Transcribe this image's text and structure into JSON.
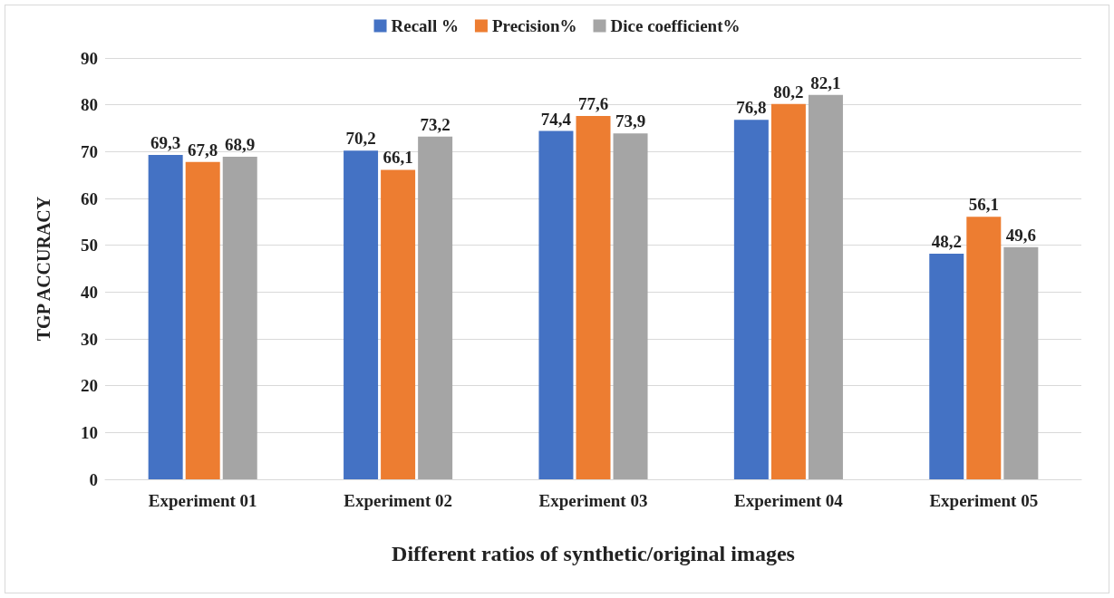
{
  "chart_data": {
    "type": "bar",
    "xlabel": "Different ratios of synthetic/original images",
    "ylabel": "TGP ACCURACY",
    "categories": [
      "Experiment 01",
      "Experiment 02",
      "Experiment 03",
      "Experiment 04",
      "Experiment 05"
    ],
    "series": [
      {
        "name": "Recall %",
        "color": "#4472c4",
        "values": [
          69.3,
          70.2,
          74.4,
          76.8,
          48.2
        ],
        "value_labels": [
          "69,3",
          "70,2",
          "74,4",
          "76,8",
          "48,2"
        ]
      },
      {
        "name": "Precision%",
        "color": "#ed7d31",
        "values": [
          67.8,
          66.1,
          77.6,
          80.2,
          56.1
        ],
        "value_labels": [
          "67,8",
          "66,1",
          "77,6",
          "80,2",
          "56,1"
        ]
      },
      {
        "name": "Dice coefficient%",
        "color": "#a5a5a5",
        "values": [
          68.9,
          73.2,
          73.9,
          82.1,
          49.6
        ],
        "value_labels": [
          "68,9",
          "73,2",
          "73,9",
          "82,1",
          "49,6"
        ]
      }
    ],
    "ylim": [
      0,
      90
    ],
    "yticks": [
      0,
      10,
      20,
      30,
      40,
      50,
      60,
      70,
      80,
      90
    ],
    "grid": "y",
    "legend": "top"
  }
}
